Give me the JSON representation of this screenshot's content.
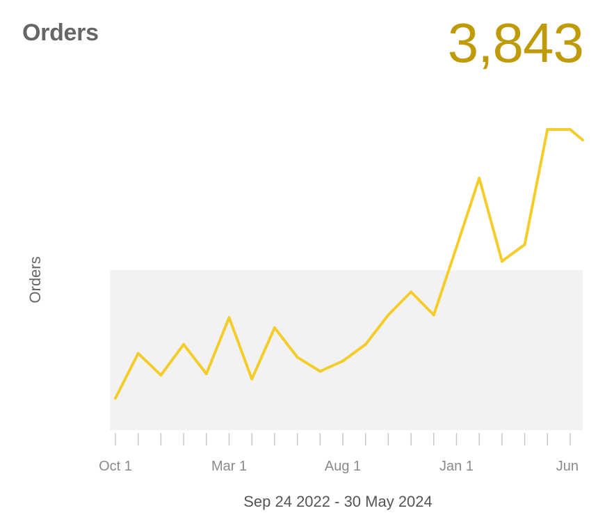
{
  "card": {
    "title": "Orders",
    "total": "3,843",
    "date_range": "Sep 24 2022 - 30 May 2024",
    "accent_color": "#f2cd2c",
    "total_color": "#bf9b0a",
    "band_color": "#f1f2f1"
  },
  "chart_data": {
    "type": "line",
    "ylabel": "Orders",
    "xlabel": "Sep 24 2022 - 30 May 2024",
    "x": [
      "2022-09-24",
      "2022-10-22",
      "2022-11-19",
      "2022-12-17",
      "2023-01-14",
      "2023-02-11",
      "2023-03-11",
      "2023-04-08",
      "2023-05-06",
      "2023-06-03",
      "2023-07-01",
      "2023-07-29",
      "2023-08-26",
      "2023-09-23",
      "2023-10-21",
      "2023-11-18",
      "2023-12-16",
      "2024-01-13",
      "2024-02-10",
      "2024-03-09",
      "2024-04-06",
      "2024-05-04",
      "2024-06-01"
    ],
    "series": [
      {
        "values": [
          25,
          60,
          43,
          67,
          44,
          88,
          40,
          80,
          57,
          46,
          54,
          67,
          90,
          108,
          90,
          143,
          197,
          132,
          145,
          235,
          235,
          220,
          186
        ]
      }
    ],
    "ylim": [
      0,
      260
    ],
    "band_range": [
      0,
      125
    ],
    "x_tick_labels": [
      {
        "label": "Oct 1",
        "index": 0
      },
      {
        "label": "Mar 1",
        "index": 5
      },
      {
        "label": "Aug 1",
        "index": 10
      },
      {
        "label": "Jan 1",
        "index": 15
      },
      {
        "label": "Jun",
        "index": 20
      }
    ],
    "grid": false,
    "legend": "none"
  }
}
